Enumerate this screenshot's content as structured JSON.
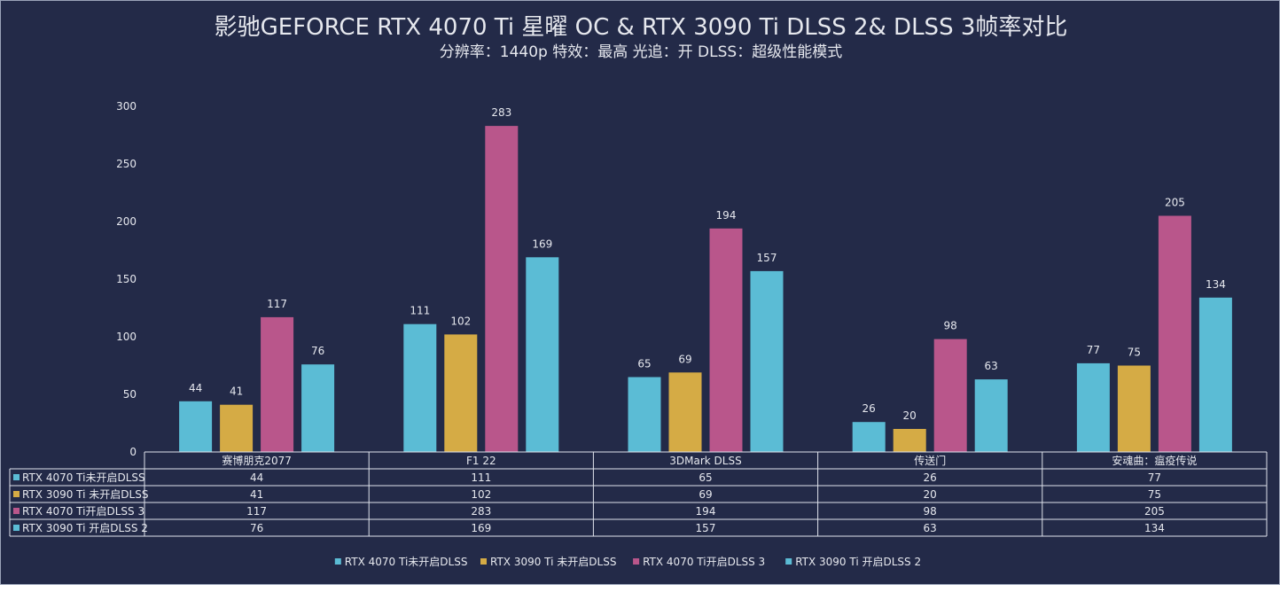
{
  "title": "影驰GEFORCE RTX 4070 Ti 星曜 OC & RTX 3090 Ti DLSS 2& DLSS 3帧率对比",
  "subtitle": "分辨率：1440p   特效：最高   光追：开  DLSS：超级性能模式",
  "chart_data": {
    "type": "bar",
    "categories": [
      "赛博朋克2077",
      "F1 22",
      "3DMark DLSS",
      "传送门",
      "安魂曲：瘟疫传说"
    ],
    "series": [
      {
        "name": "RTX 4070 Ti未开启DLSS",
        "color": "#5bbcd5",
        "values": [
          44,
          111,
          65,
          26,
          77
        ]
      },
      {
        "name": "RTX 3090 Ti 未开启DLSS",
        "color": "#d5ab45",
        "values": [
          41,
          102,
          69,
          20,
          75
        ]
      },
      {
        "name": "RTX 4070 Ti开启DLSS 3",
        "color": "#b9568b",
        "values": [
          117,
          283,
          194,
          98,
          205
        ]
      },
      {
        "name": "RTX 3090 Ti 开启DLSS 2",
        "color": "#5bbcd5",
        "values": [
          76,
          169,
          157,
          63,
          134
        ]
      }
    ],
    "ylim": [
      0,
      300
    ],
    "yticks": [
      0,
      50,
      100,
      150,
      200,
      250,
      300
    ],
    "grid": false,
    "data_table": true,
    "legend": "bottom"
  }
}
